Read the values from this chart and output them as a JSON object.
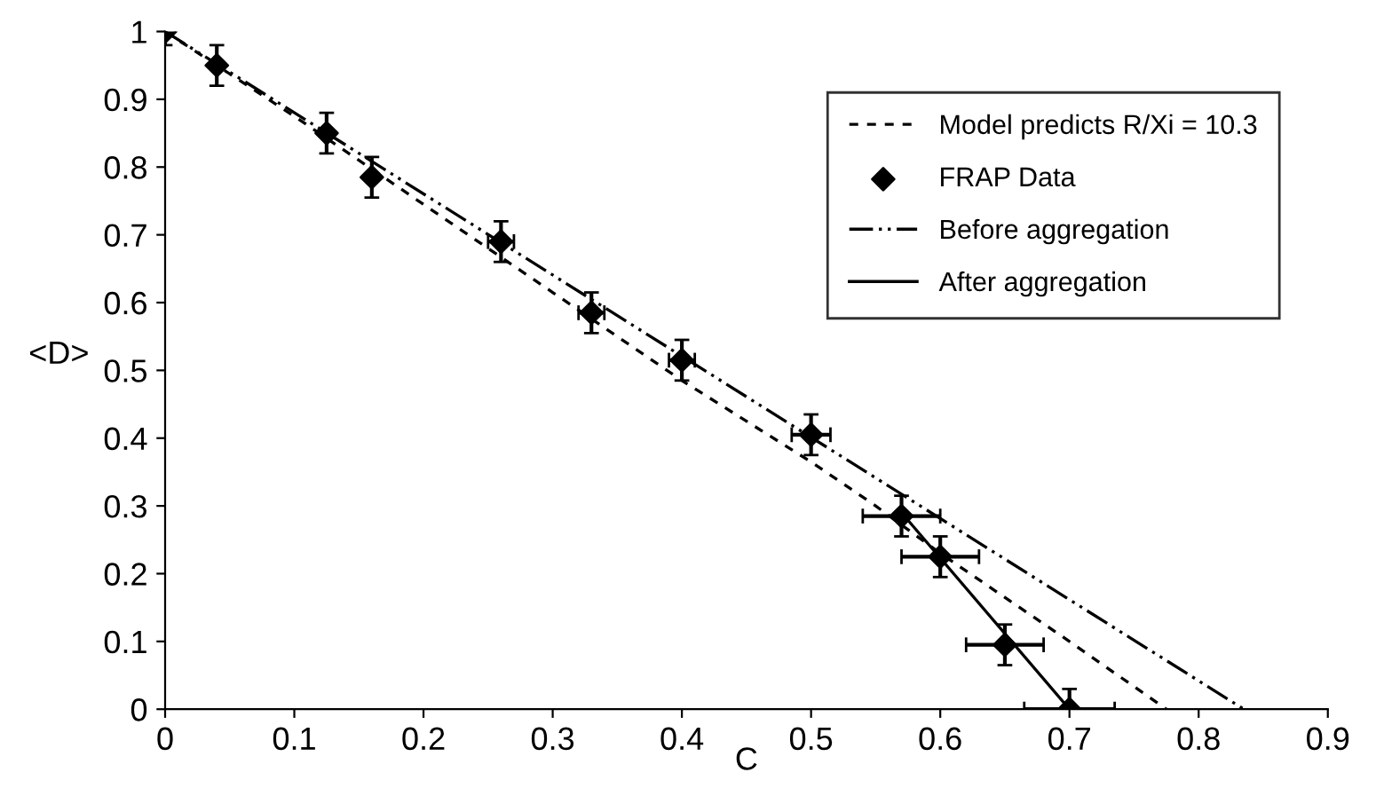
{
  "chart_data": {
    "type": "line",
    "xlabel": "C",
    "ylabel": "<D>",
    "xlim": [
      0,
      0.9
    ],
    "ylim": [
      0,
      1
    ],
    "xticks": [
      0,
      0.1,
      0.2,
      0.3,
      0.4,
      0.5,
      0.6,
      0.7,
      0.8,
      0.9
    ],
    "yticks": [
      0,
      0.1,
      0.2,
      0.3,
      0.4,
      0.5,
      0.6,
      0.7,
      0.8,
      0.9,
      1
    ],
    "grid": false,
    "legend": "top right",
    "series": [
      {
        "name": "Model predicts R/Xi = 10.3",
        "color": "#000000",
        "line_style": "dashed",
        "marker": "none",
        "x": [
          0,
          0.1,
          0.2,
          0.3,
          0.4,
          0.5,
          0.55,
          0.6,
          0.7,
          0.775
        ],
        "values": [
          1,
          0.875,
          0.745,
          0.615,
          0.485,
          0.365,
          0.3,
          0.23,
          0.1,
          0
        ]
      },
      {
        "name": "FRAP Data",
        "type": "scatter",
        "color": "#000000",
        "marker": "diamond",
        "x": [
          0,
          0.04,
          0.125,
          0.16,
          0.26,
          0.33,
          0.4,
          0.5,
          0.57,
          0.6,
          0.65,
          0.7
        ],
        "values": [
          1,
          0.95,
          0.85,
          0.785,
          0.69,
          0.585,
          0.515,
          0.405,
          0.285,
          0.225,
          0.095,
          0
        ],
        "errors": [
          0.02,
          0.03,
          0.03,
          0.03,
          0.03,
          0.03,
          0.03,
          0.03,
          0.03,
          0.03,
          0.03,
          0.03
        ],
        "xerrors": [
          null,
          null,
          null,
          null,
          0.01,
          0.01,
          0.01,
          0.015,
          0.03,
          0.03,
          0.03,
          0.035
        ]
      },
      {
        "name": "Before aggregation",
        "color": "#000000",
        "line_style": "dashdotdot",
        "marker": "none",
        "x": [
          0,
          0.835
        ],
        "values": [
          1,
          0
        ]
      },
      {
        "name": "After aggregation",
        "color": "#000000",
        "line_style": "solid",
        "marker": "none",
        "x": [
          0.57,
          0.7
        ],
        "values": [
          0.29,
          0
        ]
      }
    ]
  }
}
